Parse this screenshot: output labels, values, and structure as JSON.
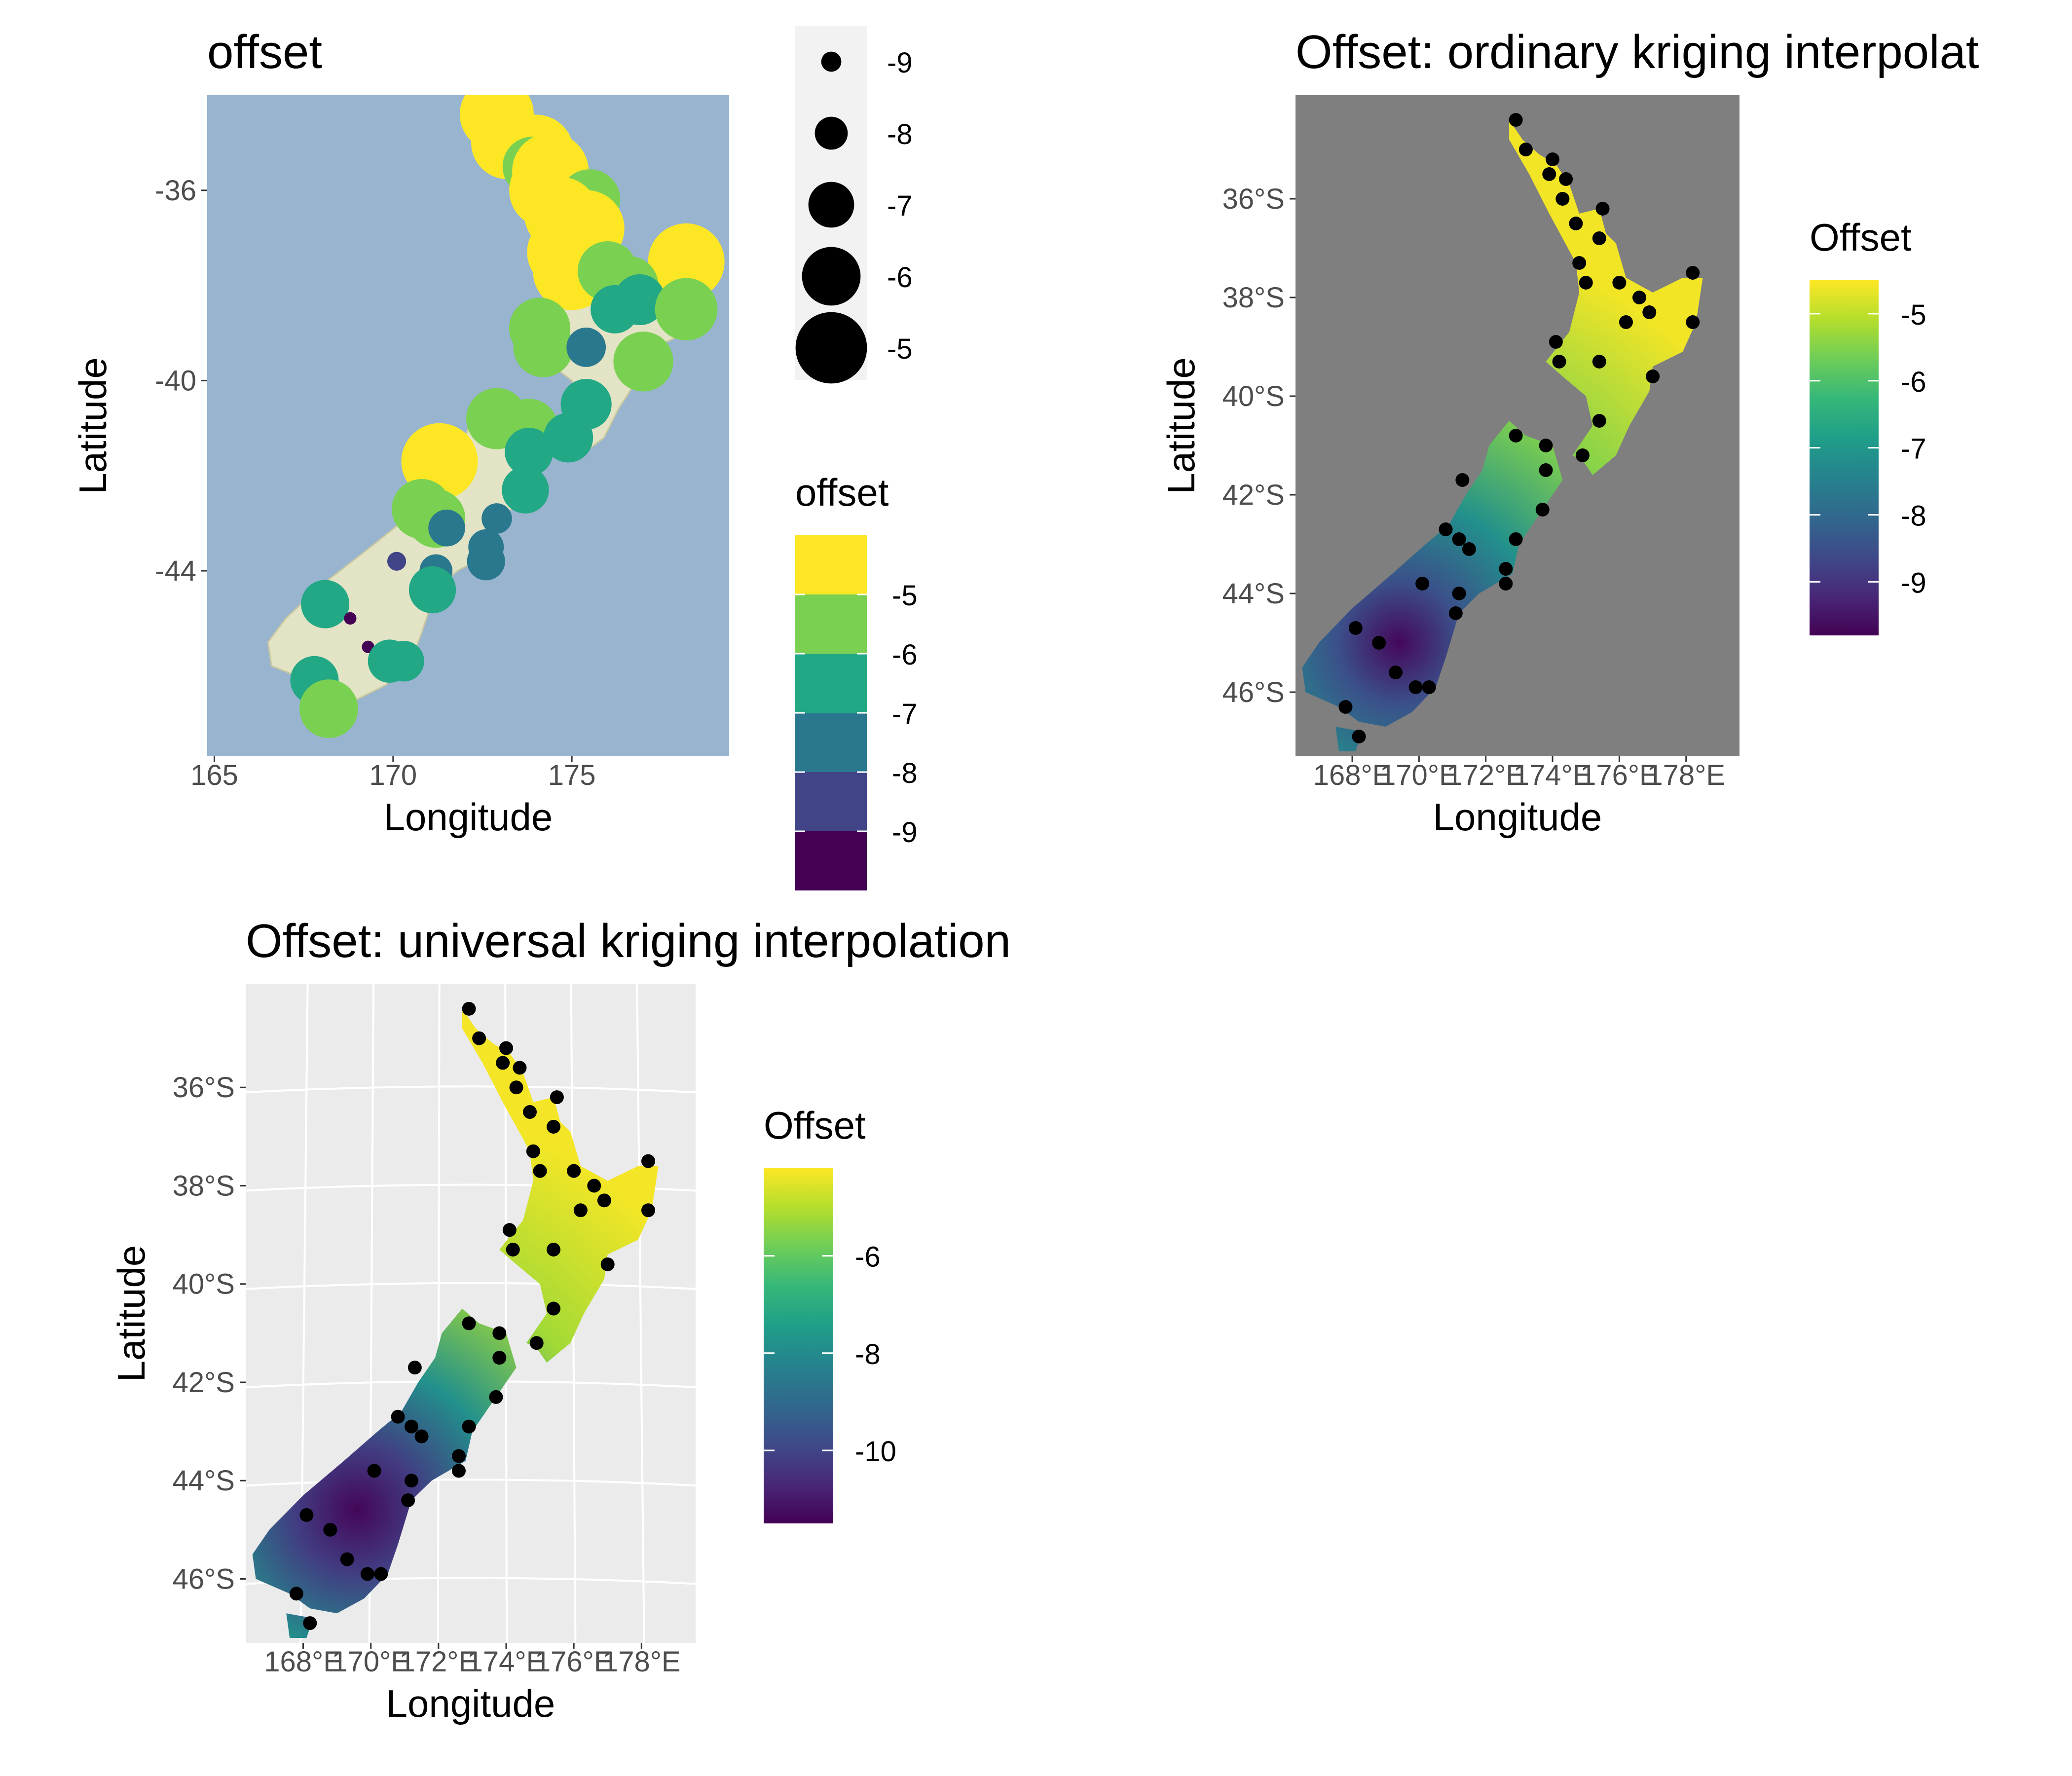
{
  "figure": "Three-panel map figure of an offset variable over New Zealand",
  "colors": {
    "sea_panel1": "#98B4CF",
    "sea_panel2": "#7F7F7F",
    "panel3_bg": "#EBEBEB",
    "land_panel1": "#E3E3C6",
    "point": "#000000"
  },
  "chart_data": [
    {
      "type": "scatter",
      "title": "offset",
      "xlabel": "Longitude",
      "ylabel": "Latitude",
      "xlim": [
        164.8,
        179.4
      ],
      "ylim": [
        -47.9,
        -34.0
      ],
      "x_ticks": [
        {
          "v": 165,
          "label": "165"
        },
        {
          "v": 170,
          "label": "170"
        },
        {
          "v": 175,
          "label": "175"
        }
      ],
      "y_ticks": [
        {
          "v": -36,
          "label": "-36"
        },
        {
          "v": -40,
          "label": "-40"
        },
        {
          "v": -44,
          "label": "-44"
        }
      ],
      "grid": false,
      "background": "satellite basemap (sea + land)",
      "size_legend": {
        "title": "",
        "labels": [
          "-9",
          "-8",
          "-7",
          "-6",
          "-5"
        ],
        "values": [
          -9,
          -8,
          -7,
          -6,
          -5
        ]
      },
      "color_legend": {
        "title": "offset",
        "type": "binned",
        "labels": [
          "-5",
          "-6",
          "-7",
          "-8",
          "-9"
        ],
        "colors": [
          "#FDE725",
          "#7AD151",
          "#22A884",
          "#2A788E",
          "#414487",
          "#440154"
        ]
      },
      "points": [
        {
          "lon": 172.9,
          "lat": -34.4,
          "offset": -4.8
        },
        {
          "lon": 173.2,
          "lat": -35.0,
          "offset": -4.9
        },
        {
          "lon": 174.0,
          "lat": -35.2,
          "offset": -4.7
        },
        {
          "lon": 173.9,
          "lat": -35.5,
          "offset": -5.9
        },
        {
          "lon": 174.4,
          "lat": -35.6,
          "offset": -4.6
        },
        {
          "lon": 174.3,
          "lat": -36.0,
          "offset": -4.7
        },
        {
          "lon": 175.5,
          "lat": -36.2,
          "offset": -5.8
        },
        {
          "lon": 174.7,
          "lat": -36.5,
          "offset": -4.8
        },
        {
          "lon": 175.4,
          "lat": -36.8,
          "offset": -4.6
        },
        {
          "lon": 174.8,
          "lat": -37.3,
          "offset": -4.7
        },
        {
          "lon": 175.0,
          "lat": -37.7,
          "offset": -4.5
        },
        {
          "lon": 176.0,
          "lat": -37.7,
          "offset": -5.9
        },
        {
          "lon": 178.2,
          "lat": -37.5,
          "offset": -4.6
        },
        {
          "lon": 176.6,
          "lat": -38.0,
          "offset": -6.0
        },
        {
          "lon": 176.9,
          "lat": -38.3,
          "offset": -6.6
        },
        {
          "lon": 178.2,
          "lat": -38.5,
          "offset": -5.7
        },
        {
          "lon": 176.2,
          "lat": -38.5,
          "offset": -6.8
        },
        {
          "lon": 174.1,
          "lat": -38.9,
          "offset": -5.8
        },
        {
          "lon": 174.2,
          "lat": -39.3,
          "offset": -5.9
        },
        {
          "lon": 175.4,
          "lat": -39.3,
          "offset": -7.5
        },
        {
          "lon": 177.0,
          "lat": -39.6,
          "offset": -5.9
        },
        {
          "lon": 175.4,
          "lat": -40.5,
          "offset": -6.6
        },
        {
          "lon": 172.9,
          "lat": -40.8,
          "offset": -5.8
        },
        {
          "lon": 173.8,
          "lat": -41.0,
          "offset": -6.0
        },
        {
          "lon": 174.9,
          "lat": -41.2,
          "offset": -6.7
        },
        {
          "lon": 173.8,
          "lat": -41.5,
          "offset": -6.8
        },
        {
          "lon": 171.3,
          "lat": -41.7,
          "offset": -4.6
        },
        {
          "lon": 173.7,
          "lat": -42.3,
          "offset": -6.9
        },
        {
          "lon": 170.8,
          "lat": -42.7,
          "offset": -5.9
        },
        {
          "lon": 171.2,
          "lat": -42.9,
          "offset": -6.0
        },
        {
          "lon": 172.9,
          "lat": -42.9,
          "offset": -8.2
        },
        {
          "lon": 171.5,
          "lat": -43.1,
          "offset": -7.7
        },
        {
          "lon": 172.6,
          "lat": -43.5,
          "offset": -7.8
        },
        {
          "lon": 172.6,
          "lat": -43.8,
          "offset": -7.6
        },
        {
          "lon": 170.1,
          "lat": -43.8,
          "offset": -9.1
        },
        {
          "lon": 171.2,
          "lat": -44.0,
          "offset": -8.0
        },
        {
          "lon": 171.1,
          "lat": -44.4,
          "offset": -6.9
        },
        {
          "lon": 168.1,
          "lat": -44.7,
          "offset": -6.8
        },
        {
          "lon": 168.8,
          "lat": -45.0,
          "offset": -9.6
        },
        {
          "lon": 169.3,
          "lat": -45.6,
          "offset": -9.6
        },
        {
          "lon": 169.9,
          "lat": -45.9,
          "offset": -7.2
        },
        {
          "lon": 170.3,
          "lat": -45.9,
          "offset": -7.4
        },
        {
          "lon": 167.8,
          "lat": -46.3,
          "offset": -6.8
        },
        {
          "lon": 168.2,
          "lat": -46.9,
          "offset": -6.0
        }
      ]
    },
    {
      "type": "heatmap",
      "title": "Offset: ordinary kriging interpolat",
      "xlabel": "Longitude",
      "ylabel": "Latitude",
      "xlim": [
        166.3,
        179.6
      ],
      "ylim": [
        -47.3,
        -33.9
      ],
      "x_ticks": [
        {
          "v": 168,
          "label": "168°E"
        },
        {
          "v": 170,
          "label": "170°E"
        },
        {
          "v": 172,
          "label": "172°E"
        },
        {
          "v": 174,
          "label": "174°E"
        },
        {
          "v": 176,
          "label": "176°E"
        },
        {
          "v": 178,
          "label": "178°E"
        }
      ],
      "y_ticks": [
        {
          "v": -36,
          "label": "36°S"
        },
        {
          "v": -38,
          "label": "38°S"
        },
        {
          "v": -40,
          "label": "40°S"
        },
        {
          "v": -42,
          "label": "42°S"
        },
        {
          "v": -44,
          "label": "44°S"
        },
        {
          "v": -46,
          "label": "46°S"
        }
      ],
      "grid": false,
      "legend": {
        "title": "Offset",
        "type": "continuous",
        "placement": "right",
        "labels": [
          "-5",
          "-6",
          "-7",
          "-8",
          "-9"
        ],
        "values": [
          -5,
          -6,
          -7,
          -8,
          -9
        ],
        "range": [
          -9.8,
          -4.5
        ]
      },
      "surface": {
        "low_center": {
          "lon": 169.4,
          "lat": -45.0
        },
        "min": -9.7,
        "max": -4.6
      },
      "points_note": "same 44 station locations as panel 1, drawn as black dots"
    },
    {
      "type": "heatmap",
      "title": "Offset: universal kriging interpolation",
      "xlabel": "Longitude",
      "ylabel": "Latitude",
      "xlim": [
        166.3,
        179.6
      ],
      "ylim": [
        -47.3,
        -33.9
      ],
      "x_ticks": [
        {
          "v": 168,
          "label": "168°E"
        },
        {
          "v": 170,
          "label": "170°E"
        },
        {
          "v": 172,
          "label": "172°E"
        },
        {
          "v": 174,
          "label": "174°E"
        },
        {
          "v": 176,
          "label": "176°E"
        },
        {
          "v": 178,
          "label": "178°E"
        }
      ],
      "y_ticks": [
        {
          "v": -36,
          "label": "36°S"
        },
        {
          "v": -38,
          "label": "38°S"
        },
        {
          "v": -40,
          "label": "40°S"
        },
        {
          "v": -42,
          "label": "42°S"
        },
        {
          "v": -44,
          "label": "44°S"
        },
        {
          "v": -46,
          "label": "46°S"
        }
      ],
      "grid": true,
      "legend": {
        "title": "Offset",
        "type": "continuous",
        "placement": "right",
        "labels": [
          "-6",
          "-8",
          "-10"
        ],
        "values": [
          -6,
          -8,
          -10
        ],
        "range": [
          -11.5,
          -4.2
        ]
      },
      "surface": {
        "low_center": {
          "lon": 169.6,
          "lat": -44.6
        },
        "min": -11.4,
        "max": -4.3
      },
      "points_note": "same 44 station locations as panel 1, drawn as black dots"
    }
  ]
}
